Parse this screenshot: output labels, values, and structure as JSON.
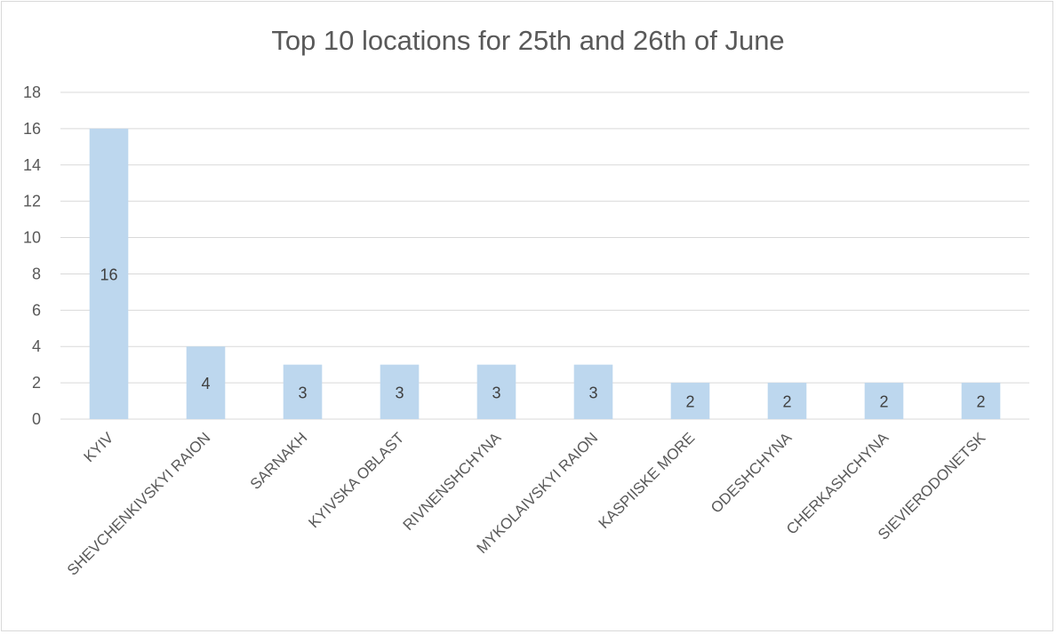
{
  "chart_data": {
    "type": "bar",
    "title": "Top 10 locations for 25th and 26th of June",
    "categories": [
      "KYIV",
      "SHEVCHENKIVSKYI RAION",
      "SARNAKH",
      "KYIVSKA OBLAST",
      "RIVNENSHCHYNA",
      "MYKOLAIVSKYI RAION",
      "KASPIISKE MORE",
      "ODESHCHYNA",
      "CHERKASHCHYNA",
      "SIEVIERODONETSK"
    ],
    "values": [
      16,
      4,
      3,
      3,
      3,
      3,
      2,
      2,
      2,
      2
    ],
    "ylim": [
      0,
      18
    ],
    "yticks": [
      0,
      2,
      4,
      6,
      8,
      10,
      12,
      14,
      16,
      18
    ],
    "grid": true,
    "data_labels": true,
    "legend": "none",
    "bar_color": "#bdd7ee",
    "grid_color": "#d9d9d9"
  }
}
